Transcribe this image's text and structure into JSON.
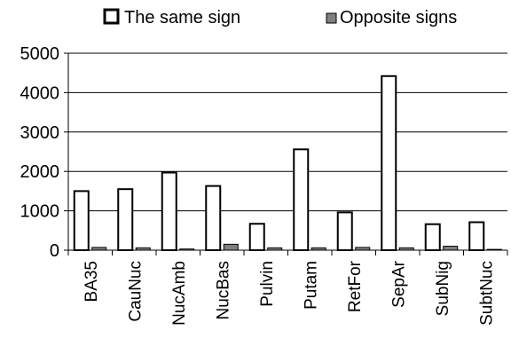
{
  "chart_data": {
    "type": "bar",
    "title": "",
    "xlabel": "",
    "ylabel": "",
    "ylim": [
      0,
      5000
    ],
    "yticks": [
      0,
      1000,
      2000,
      3000,
      4000,
      5000
    ],
    "y_tick_labels": [
      "0",
      "1000",
      "2000",
      "3000",
      "4000",
      "5000"
    ],
    "grid": "horizontal",
    "legend": "top",
    "categories": [
      "BA35",
      "CauNuc",
      "NucAmb",
      "NucBas",
      "Pulvin",
      "Putam",
      "RetFor",
      "SepAr",
      "SubNig",
      "SubtNuc"
    ],
    "series": [
      {
        "name": "The same sign",
        "fill": "#ffffff",
        "stroke": "#000000",
        "values": [
          1500,
          1550,
          1970,
          1630,
          670,
          2560,
          960,
          4420,
          660,
          710
        ]
      },
      {
        "name": "Opposite signs",
        "fill": "#808080",
        "stroke": "#000000",
        "values": [
          70,
          60,
          30,
          150,
          60,
          60,
          70,
          60,
          100,
          20
        ]
      }
    ]
  }
}
